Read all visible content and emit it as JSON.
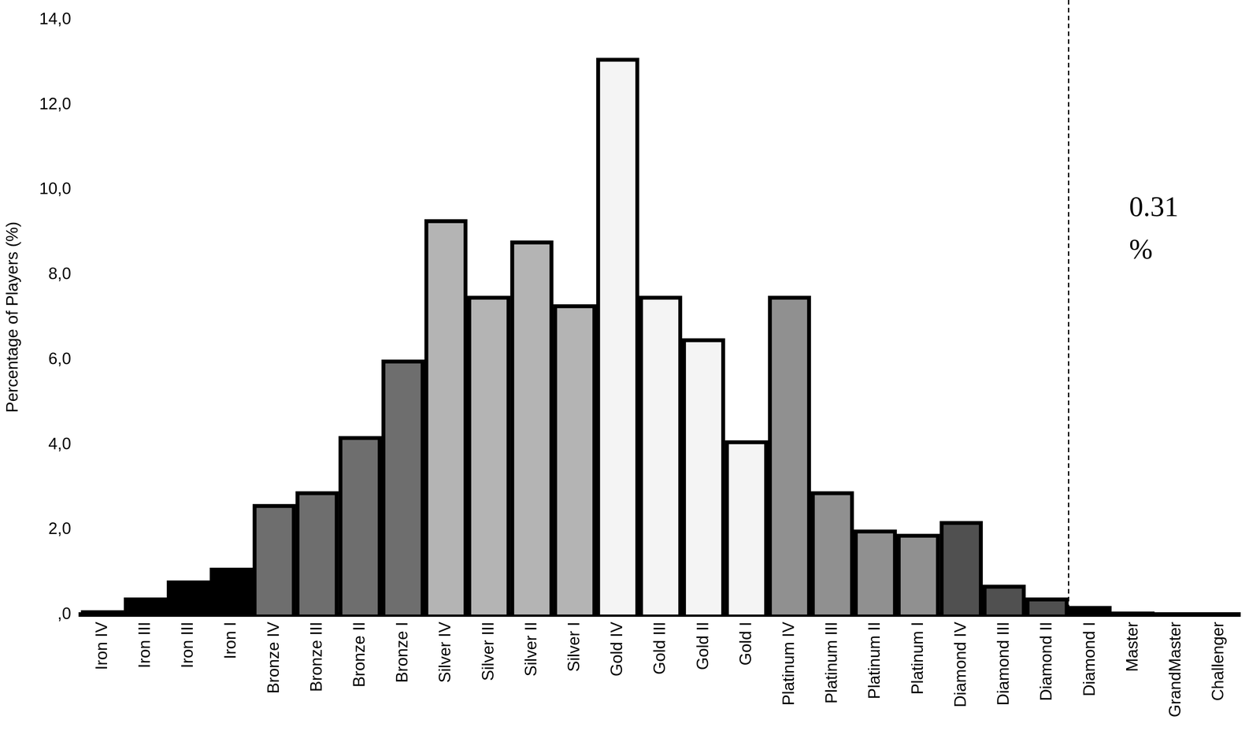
{
  "chart_data": {
    "type": "bar",
    "y_label": "Percentage of Players (%)",
    "categories": [
      "Iron IV",
      "Iron III",
      "Iron III",
      "Iron I",
      "Bronze IV",
      "Bronze III",
      "Bronze II",
      "Bronze I",
      "Silver IV",
      "Silver III",
      "Silver II",
      "Silver I",
      "Gold IV",
      "Gold III",
      "Gold II",
      "Gold I",
      "Platinum IV",
      "Platinum III",
      "Platinum II",
      "Platinum I",
      "Diamond IV",
      "Diamond III",
      "Diamond II",
      "Diamond I",
      "Master",
      "GrandMaster",
      "Challenger"
    ],
    "values": [
      0.1,
      0.4,
      0.8,
      1.1,
      2.6,
      2.9,
      4.2,
      6.0,
      9.3,
      7.5,
      8.8,
      7.3,
      13.1,
      7.5,
      6.5,
      4.1,
      7.5,
      2.9,
      2.0,
      1.9,
      2.2,
      0.7,
      0.4,
      0.2,
      0.07,
      0.05,
      0.03
    ],
    "colors": [
      "#000000",
      "#000000",
      "#000000",
      "#000000",
      "#6e6e6e",
      "#6e6e6e",
      "#6e6e6e",
      "#6e6e6e",
      "#b4b4b4",
      "#b4b4b4",
      "#b4b4b4",
      "#b4b4b4",
      "#f4f4f4",
      "#f4f4f4",
      "#f4f4f4",
      "#f4f4f4",
      "#909090",
      "#909090",
      "#909090",
      "#909090",
      "#505050",
      "#505050",
      "#505050",
      "#000000",
      "#000000",
      "#000000",
      "#000000"
    ],
    "ylim": [
      0,
      14
    ],
    "yticks": [
      {
        "value": 0,
        "label": ",0"
      },
      {
        "value": 2,
        "label": "2,0"
      },
      {
        "value": 4,
        "label": "4,0"
      },
      {
        "value": 6,
        "label": "6,0"
      },
      {
        "value": 8,
        "label": "8,0"
      },
      {
        "value": 10,
        "label": "10,0"
      },
      {
        "value": 12,
        "label": "12,0"
      },
      {
        "value": 14,
        "label": "14,0"
      }
    ],
    "grid": false,
    "annotation": {
      "text": "0.31 %",
      "from": "Diamond I"
    }
  }
}
